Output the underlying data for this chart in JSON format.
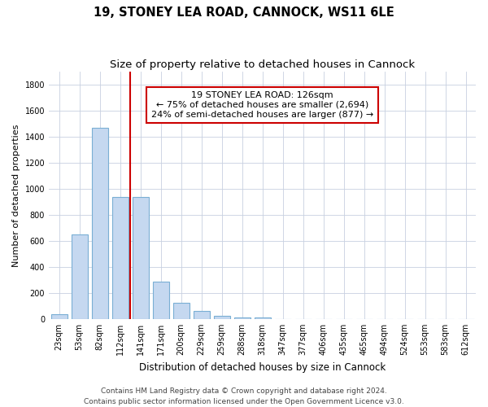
{
  "title": "19, STONEY LEA ROAD, CANNOCK, WS11 6LE",
  "subtitle": "Size of property relative to detached houses in Cannock",
  "xlabel": "Distribution of detached houses by size in Cannock",
  "ylabel": "Number of detached properties",
  "bar_values": [
    38,
    650,
    1470,
    935,
    935,
    290,
    125,
    60,
    22,
    10,
    10,
    0,
    0,
    0,
    0,
    0,
    0,
    0,
    0,
    0,
    0
  ],
  "bar_labels": [
    "23sqm",
    "53sqm",
    "82sqm",
    "112sqm",
    "141sqm",
    "171sqm",
    "200sqm",
    "229sqm",
    "259sqm",
    "288sqm",
    "318sqm",
    "347sqm",
    "377sqm",
    "406sqm",
    "435sqm",
    "465sqm",
    "494sqm",
    "524sqm",
    "553sqm",
    "583sqm",
    "612sqm"
  ],
  "bar_color": "#c5d8f0",
  "bar_edge_color": "#7aafd4",
  "bar_edge_width": 0.8,
  "vline_color": "#cc0000",
  "annotation_line1": "19 STONEY LEA ROAD: 126sqm",
  "annotation_line2": "← 75% of detached houses are smaller (2,694)",
  "annotation_line3": "24% of semi-detached houses are larger (877) →",
  "annotation_box_color": "white",
  "annotation_box_edge_color": "#cc0000",
  "ylim": [
    0,
    1900
  ],
  "yticks": [
    0,
    200,
    400,
    600,
    800,
    1000,
    1200,
    1400,
    1600,
    1800
  ],
  "grid_color": "#c8d0e0",
  "background_color": "#ffffff",
  "footer_line1": "Contains HM Land Registry data © Crown copyright and database right 2024.",
  "footer_line2": "Contains public sector information licensed under the Open Government Licence v3.0.",
  "title_fontsize": 10.5,
  "subtitle_fontsize": 9.5,
  "xlabel_fontsize": 8.5,
  "ylabel_fontsize": 8,
  "tick_fontsize": 7,
  "annotation_fontsize": 8,
  "footer_fontsize": 6.5
}
